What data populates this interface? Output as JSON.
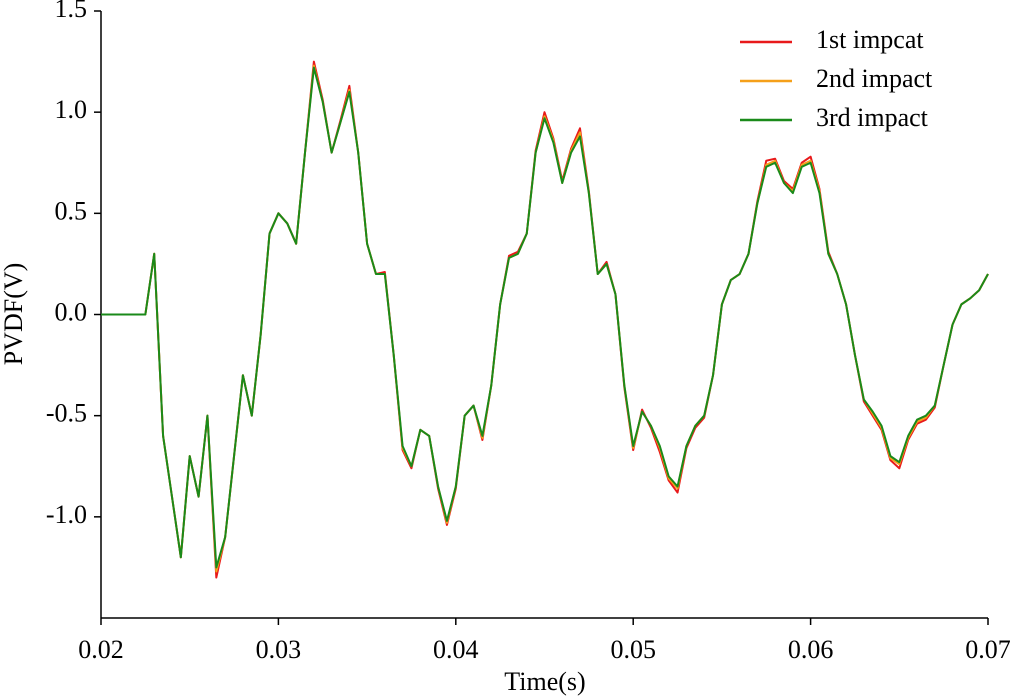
{
  "chart_data": {
    "type": "line",
    "xlabel": "Time(s)",
    "ylabel": "PVDF(V)",
    "xlim": [
      0.02,
      0.07
    ],
    "xticks": [
      0.02,
      0.03,
      0.04,
      0.05,
      0.06,
      0.07
    ],
    "ylim": [
      -1.5,
      1.5
    ],
    "yticks": [
      {
        "value": -1,
        "label": "-1.0"
      },
      -0.5,
      {
        "value": 0,
        "label": "0.0"
      },
      0.5,
      {
        "value": 1,
        "label": "1.0"
      },
      1.5
    ],
    "legend": "upper right",
    "x": [
      0.02,
      0.0205,
      0.021,
      0.0215,
      0.022,
      0.0225,
      0.023,
      0.0235,
      0.024,
      0.0245,
      0.025,
      0.0255,
      0.026,
      0.0265,
      0.027,
      0.0275,
      0.028,
      0.0285,
      0.029,
      0.0295,
      0.03,
      0.0305,
      0.031,
      0.0315,
      0.032,
      0.0325,
      0.033,
      0.0335,
      0.034,
      0.0345,
      0.035,
      0.0355,
      0.036,
      0.0365,
      0.037,
      0.0375,
      0.038,
      0.0385,
      0.039,
      0.0395,
      0.04,
      0.0405,
      0.041,
      0.0415,
      0.042,
      0.0425,
      0.043,
      0.0435,
      0.044,
      0.0445,
      0.045,
      0.0455,
      0.046,
      0.0465,
      0.047,
      0.0475,
      0.048,
      0.0485,
      0.049,
      0.0495,
      0.05,
      0.0505,
      0.051,
      0.0515,
      0.052,
      0.0525,
      0.053,
      0.0535,
      0.054,
      0.0545,
      0.055,
      0.0555,
      0.056,
      0.0565,
      0.057,
      0.0575,
      0.058,
      0.0585,
      0.059,
      0.0595,
      0.06,
      0.0605,
      0.061,
      0.0615,
      0.062,
      0.0625,
      0.063,
      0.0635,
      0.064,
      0.0645,
      0.065,
      0.0655,
      0.066,
      0.0665,
      0.067,
      0.0675,
      0.068,
      0.0685,
      0.069,
      0.0695,
      0.07
    ],
    "series": [
      {
        "name": "1st impcat",
        "color": "#e8191b",
        "values": [
          0,
          0,
          0,
          0,
          0,
          0,
          0.3,
          -0.6,
          -0.9,
          -1.2,
          -0.7,
          -0.9,
          -0.5,
          -1.3,
          -1.1,
          -0.7,
          -0.3,
          -0.5,
          -0.1,
          0.4,
          0.5,
          0.45,
          0.35,
          0.8,
          1.25,
          1.06,
          0.8,
          0.96,
          1.13,
          0.8,
          0.35,
          0.2,
          0.21,
          -0.2,
          -0.67,
          -0.76,
          -0.57,
          -0.6,
          -0.86,
          -1.04,
          -0.86,
          -0.5,
          -0.45,
          -0.62,
          -0.35,
          0.05,
          0.29,
          0.31,
          0.4,
          0.81,
          1.0,
          0.87,
          0.66,
          0.82,
          0.92,
          0.61,
          0.2,
          0.26,
          0.1,
          -0.36,
          -0.67,
          -0.47,
          -0.56,
          -0.68,
          -0.82,
          -0.88,
          -0.66,
          -0.56,
          -0.51,
          -0.3,
          0.05,
          0.17,
          0.2,
          0.3,
          0.56,
          0.76,
          0.77,
          0.66,
          0.62,
          0.75,
          0.78,
          0.62,
          0.31,
          0.2,
          0.05,
          -0.2,
          -0.43,
          -0.5,
          -0.57,
          -0.72,
          -0.76,
          -0.62,
          -0.54,
          -0.52,
          -0.46,
          -0.25,
          -0.05,
          0.05,
          0.08,
          0.12,
          0.2
        ]
      },
      {
        "name": "2nd impact",
        "color": "#f5a01a",
        "values": [
          0,
          0,
          0,
          0,
          0,
          0,
          0.3,
          -0.6,
          -0.9,
          -1.2,
          -0.7,
          -0.9,
          -0.5,
          -1.27,
          -1.1,
          -0.7,
          -0.3,
          -0.5,
          -0.1,
          0.4,
          0.5,
          0.45,
          0.35,
          0.8,
          1.23,
          1.05,
          0.8,
          0.95,
          1.11,
          0.8,
          0.35,
          0.2,
          0.2,
          -0.2,
          -0.66,
          -0.75,
          -0.57,
          -0.6,
          -0.85,
          -1.03,
          -0.85,
          -0.5,
          -0.45,
          -0.61,
          -0.35,
          0.05,
          0.28,
          0.3,
          0.4,
          0.8,
          0.98,
          0.86,
          0.65,
          0.81,
          0.9,
          0.6,
          0.2,
          0.25,
          0.1,
          -0.35,
          -0.66,
          -0.48,
          -0.55,
          -0.66,
          -0.81,
          -0.86,
          -0.65,
          -0.55,
          -0.5,
          -0.3,
          0.05,
          0.17,
          0.2,
          0.3,
          0.55,
          0.74,
          0.76,
          0.65,
          0.61,
          0.74,
          0.76,
          0.61,
          0.3,
          0.2,
          0.05,
          -0.2,
          -0.42,
          -0.49,
          -0.56,
          -0.71,
          -0.74,
          -0.61,
          -0.53,
          -0.51,
          -0.45,
          -0.25,
          -0.05,
          0.05,
          0.08,
          0.12,
          0.2
        ]
      },
      {
        "name": "3rd impact",
        "color": "#1a8a1a",
        "values": [
          0,
          0,
          0,
          0,
          0,
          0,
          0.3,
          -0.6,
          -0.9,
          -1.2,
          -0.7,
          -0.9,
          -0.5,
          -1.25,
          -1.1,
          -0.7,
          -0.3,
          -0.5,
          -0.1,
          0.4,
          0.5,
          0.45,
          0.35,
          0.8,
          1.22,
          1.05,
          0.8,
          0.95,
          1.1,
          0.8,
          0.35,
          0.2,
          0.2,
          -0.2,
          -0.65,
          -0.75,
          -0.57,
          -0.6,
          -0.85,
          -1.02,
          -0.85,
          -0.5,
          -0.45,
          -0.6,
          -0.35,
          0.05,
          0.28,
          0.3,
          0.4,
          0.8,
          0.97,
          0.85,
          0.65,
          0.8,
          0.88,
          0.6,
          0.2,
          0.25,
          0.1,
          -0.35,
          -0.65,
          -0.48,
          -0.55,
          -0.65,
          -0.8,
          -0.85,
          -0.65,
          -0.55,
          -0.5,
          -0.3,
          0.05,
          0.17,
          0.2,
          0.3,
          0.55,
          0.73,
          0.75,
          0.65,
          0.6,
          0.73,
          0.75,
          0.6,
          0.3,
          0.2,
          0.05,
          -0.2,
          -0.42,
          -0.48,
          -0.55,
          -0.7,
          -0.73,
          -0.6,
          -0.52,
          -0.5,
          -0.45,
          -0.25,
          -0.05,
          0.05,
          0.08,
          0.12,
          0.2
        ]
      }
    ]
  }
}
